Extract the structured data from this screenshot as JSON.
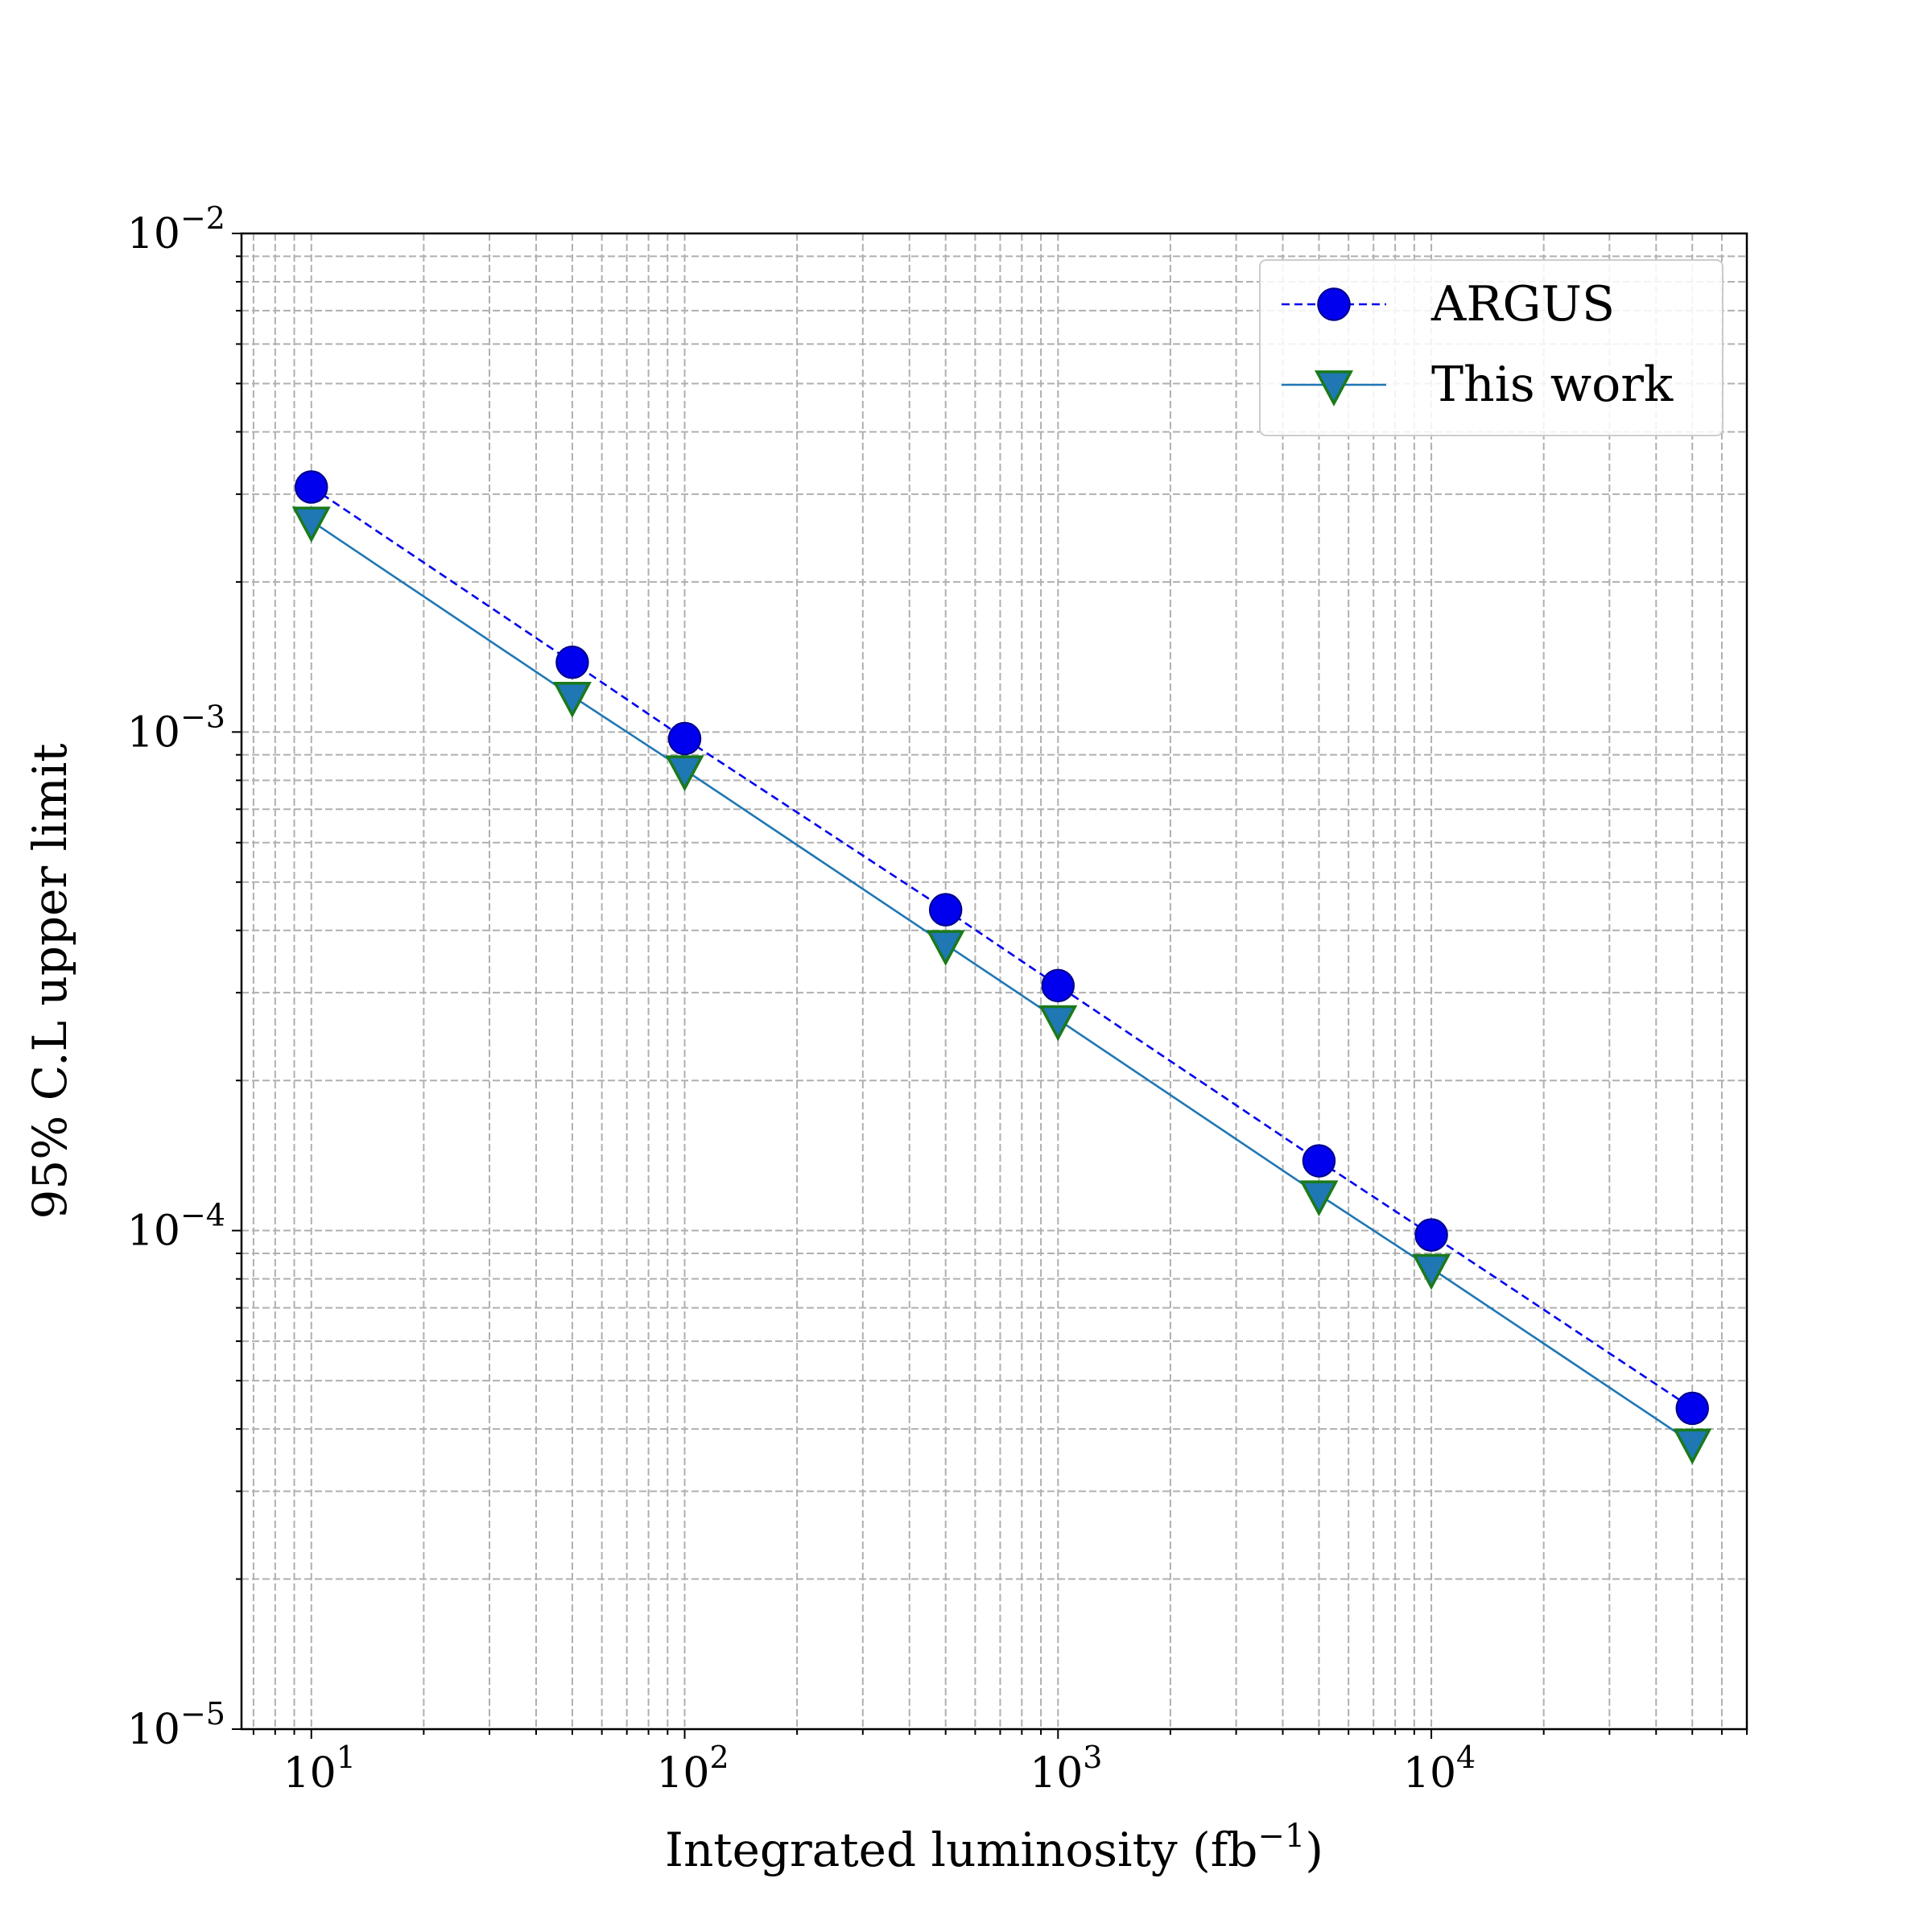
{
  "chart_data": {
    "type": "line",
    "xscale": "log",
    "yscale": "log",
    "xlim": [
      6.5,
      70000
    ],
    "ylim": [
      1e-05,
      0.01
    ],
    "xlabel": "Integrated luminosity (fb",
    "xlabel_sup": "−1",
    "xlabel_close": ")",
    "ylabel": "95% C.L upper limit",
    "grid": true,
    "legend_position": "top-right",
    "x_ticks": [
      {
        "value": 10,
        "base": "10",
        "exp": "1"
      },
      {
        "value": 100,
        "base": "10",
        "exp": "2"
      },
      {
        "value": 1000,
        "base": "10",
        "exp": "3"
      },
      {
        "value": 10000,
        "base": "10",
        "exp": "4"
      }
    ],
    "y_ticks": [
      {
        "value": 1e-05,
        "base": "10",
        "exp": "−5"
      },
      {
        "value": 0.0001,
        "base": "10",
        "exp": "−4"
      },
      {
        "value": 0.001,
        "base": "10",
        "exp": "−3"
      },
      {
        "value": 0.01,
        "base": "10",
        "exp": "−2"
      }
    ],
    "series": [
      {
        "name": "ARGUS",
        "color": "#0000ee",
        "marker": "circle",
        "line_style": "dashed",
        "x": [
          10,
          50,
          100,
          500,
          1000,
          5000,
          10000,
          50000
        ],
        "y": [
          0.0031,
          0.00138,
          0.00097,
          0.00044,
          0.00031,
          0.000138,
          9.8e-05,
          4.4e-05
        ]
      },
      {
        "name": "This work",
        "color": "#1f77b4",
        "marker_edge": "#1a7a1a",
        "marker": "triangle-down",
        "line_style": "solid",
        "x": [
          10,
          50,
          100,
          500,
          1000,
          5000,
          10000,
          50000
        ],
        "y": [
          0.00265,
          0.00118,
          0.00084,
          0.000375,
          0.000265,
          0.000118,
          8.4e-05,
          3.75e-05
        ]
      }
    ]
  }
}
